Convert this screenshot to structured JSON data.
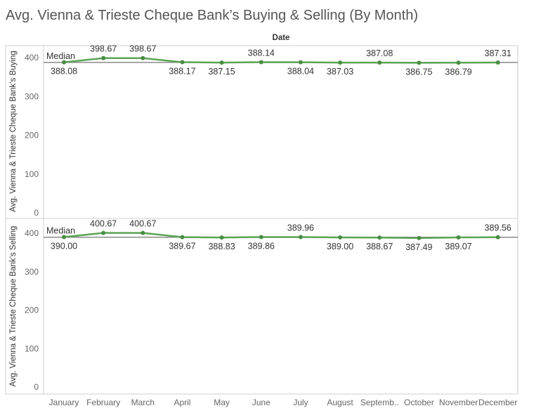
{
  "colors": {
    "line": "#5aa454",
    "marker": "#4a8c45",
    "reference": "#8a8a8a",
    "frame": "#cfcfcf"
  },
  "chart_data": {
    "type": "line",
    "title": "Avg. Vienna & Trieste Cheque Bank’s Buying & Selling (By Month)",
    "xlabel": "Date",
    "categories": [
      "January",
      "February",
      "March",
      "April",
      "May",
      "June",
      "July",
      "August",
      "Septemb..",
      "October",
      "November",
      "December"
    ],
    "ylim": [
      0,
      420
    ],
    "yticks": [
      0,
      100,
      200,
      300,
      400
    ],
    "grid": false,
    "panels": [
      {
        "ylabel": "Avg. Vienna & Trieste Cheque Bank’s Buying",
        "values": [
          388.08,
          398.67,
          398.67,
          388.17,
          387.15,
          388.14,
          388.04,
          387.03,
          387.08,
          386.75,
          386.79,
          387.31
        ],
        "labels": [
          "388.08",
          "398.67",
          "398.67",
          "388.17",
          "387.15",
          "388.14",
          "388.04",
          "387.03",
          "387.08",
          "386.75",
          "386.79",
          "387.31"
        ],
        "label_pos": [
          "below",
          "above",
          "above",
          "below",
          "below",
          "above",
          "below",
          "below",
          "above",
          "below",
          "below",
          "above"
        ],
        "reference": {
          "label": "Median",
          "value": 387.6
        }
      },
      {
        "ylabel": "Avg. Vienna & Trieste Cheque Bank’s Selling",
        "values": [
          390.0,
          400.67,
          400.67,
          389.67,
          388.83,
          389.86,
          389.96,
          389.0,
          388.67,
          387.49,
          389.07,
          389.56
        ],
        "labels": [
          "390.00",
          "400.67",
          "400.67",
          "389.67",
          "388.83",
          "389.86",
          "389.96",
          "389.00",
          "388.67",
          "387.49",
          "389.07",
          "389.56"
        ],
        "label_pos": [
          "below",
          "above",
          "above",
          "below",
          "below",
          "below",
          "above",
          "below",
          "below",
          "below",
          "below",
          "above"
        ],
        "reference": {
          "label": "Median",
          "value": 389.6
        }
      }
    ]
  }
}
